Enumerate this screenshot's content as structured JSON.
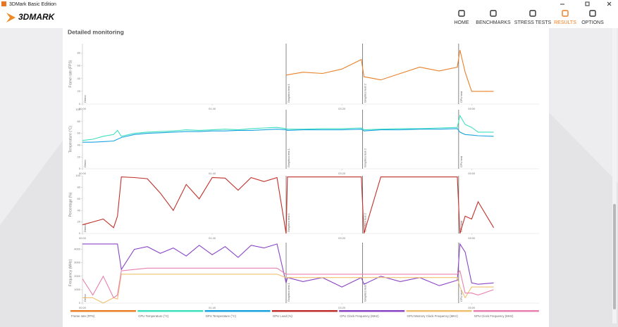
{
  "window": {
    "title": "3DMark Basic Edition"
  },
  "nav": {
    "logo": "3DMARK",
    "items": [
      "HOME",
      "BENCHMARKS",
      "STRESS TESTS",
      "RESULTS",
      "OPTIONS"
    ],
    "active": 3
  },
  "panel": {
    "heading": "Detailed monitoring"
  },
  "xlim": [
    0,
    352
  ],
  "xticks": [
    {
      "value": 0,
      "label": "00:00"
    },
    {
      "value": 100,
      "label": "01:40"
    },
    {
      "value": 200,
      "label": "03:20"
    },
    {
      "value": 300,
      "label": "05:00"
    }
  ],
  "sections": [
    {
      "label": "Demo",
      "x": 0
    },
    {
      "label": "Graphics test 1",
      "x": 157
    },
    {
      "label": "Graphics test 2",
      "x": 216
    },
    {
      "label": "CPU test",
      "x": 290
    }
  ],
  "x": [
    0,
    8,
    16,
    24,
    27,
    30,
    40,
    50,
    60,
    70,
    80,
    90,
    100,
    110,
    120,
    130,
    140,
    150,
    157,
    158,
    170,
    185,
    200,
    215,
    217,
    230,
    245,
    260,
    275,
    289,
    291,
    295,
    300,
    305,
    317
  ],
  "charts": [
    {
      "type": "line",
      "ylabel": "Frame rate (FPS)",
      "ylim": [
        0,
        95
      ],
      "yticks": [
        0,
        20,
        40,
        60,
        80
      ],
      "series": [
        {
          "name": "Frame rate (FPS)",
          "color": "#e8802a",
          "values": [
            null,
            null,
            null,
            null,
            null,
            null,
            null,
            null,
            null,
            null,
            null,
            null,
            null,
            null,
            null,
            null,
            null,
            null,
            45,
            46,
            50,
            48,
            55,
            70,
            43,
            38,
            48,
            58,
            52,
            58,
            85,
            50,
            20,
            20,
            20
          ]
        }
      ]
    },
    {
      "type": "line",
      "ylabel": "Temperature (°C)",
      "ylim": [
        0,
        100
      ],
      "yticks": [
        0,
        20,
        40,
        60,
        80,
        100
      ],
      "series": [
        {
          "name": "CPU Temperature (°C)",
          "color": "#3ee0c0",
          "values": [
            48,
            50,
            55,
            58,
            65,
            55,
            60,
            62,
            63,
            64,
            66,
            65,
            66,
            67,
            66,
            68,
            69,
            70,
            68,
            67,
            67,
            68,
            68,
            69,
            66,
            67,
            68,
            68,
            69,
            70,
            90,
            75,
            70,
            62,
            62
          ]
        },
        {
          "name": "GPU Temperature (°C)",
          "color": "#1aa3e0",
          "values": [
            45,
            45,
            46,
            47,
            50,
            53,
            58,
            60,
            61,
            62,
            63,
            63,
            64,
            64,
            65,
            65,
            66,
            67,
            66,
            65,
            66,
            66,
            66,
            67,
            64,
            66,
            66,
            67,
            67,
            68,
            62,
            58,
            57,
            56,
            55
          ]
        }
      ]
    },
    {
      "type": "line",
      "ylabel": "Percentage (%)",
      "ylim": [
        0,
        100
      ],
      "yticks": [
        0,
        20,
        40,
        60,
        80,
        100
      ],
      "series": [
        {
          "name": "GPU Load (%)",
          "color": "#c0302a",
          "values": [
            15,
            20,
            25,
            10,
            30,
            98,
            97,
            95,
            70,
            40,
            85,
            60,
            97,
            96,
            75,
            97,
            90,
            97,
            0,
            98,
            98,
            98,
            98,
            98,
            0,
            98,
            98,
            98,
            98,
            98,
            0,
            30,
            25,
            55,
            10
          ]
        }
      ]
    },
    {
      "type": "line",
      "ylabel": "Frequency (MHz)",
      "ylim": [
        0,
        4500
      ],
      "yticks": [
        0,
        1000,
        2000,
        3000,
        4000
      ],
      "series": [
        {
          "name": "CPU Clock Frequency (MHz)",
          "color": "#8a44c6",
          "values": [
            4400,
            4400,
            4400,
            4400,
            4400,
            2500,
            4000,
            4200,
            3700,
            4100,
            3500,
            4300,
            3600,
            4200,
            3400,
            4300,
            4100,
            4400,
            1500,
            1900,
            1600,
            1900,
            1200,
            1900,
            1400,
            2000,
            1600,
            1900,
            1300,
            1700,
            4400,
            3800,
            1500,
            1400,
            1500
          ]
        },
        {
          "name": "GPU Memory Clock Frequency (MHz)",
          "color": "#f0c070",
          "values": [
            400,
            400,
            0,
            400,
            300,
            2150,
            2150,
            2150,
            2150,
            2150,
            2150,
            2150,
            2150,
            2150,
            2150,
            2150,
            2150,
            2150,
            1900,
            1900,
            1900,
            1900,
            1900,
            1900,
            1900,
            1900,
            1900,
            1900,
            1900,
            1900,
            1200,
            400,
            1200,
            1200,
            1200
          ]
        },
        {
          "name": "GPU Clock Frequency (MHz)",
          "color": "#e880b0",
          "values": [
            1800,
            600,
            2000,
            400,
            600,
            2400,
            2500,
            2600,
            2600,
            2600,
            2600,
            2600,
            2600,
            2600,
            2600,
            2600,
            2600,
            2600,
            2150,
            2150,
            2150,
            2150,
            2150,
            2150,
            2150,
            2150,
            2150,
            2150,
            2150,
            2150,
            2400,
            750,
            750,
            600,
            1000
          ]
        }
      ]
    }
  ]
}
